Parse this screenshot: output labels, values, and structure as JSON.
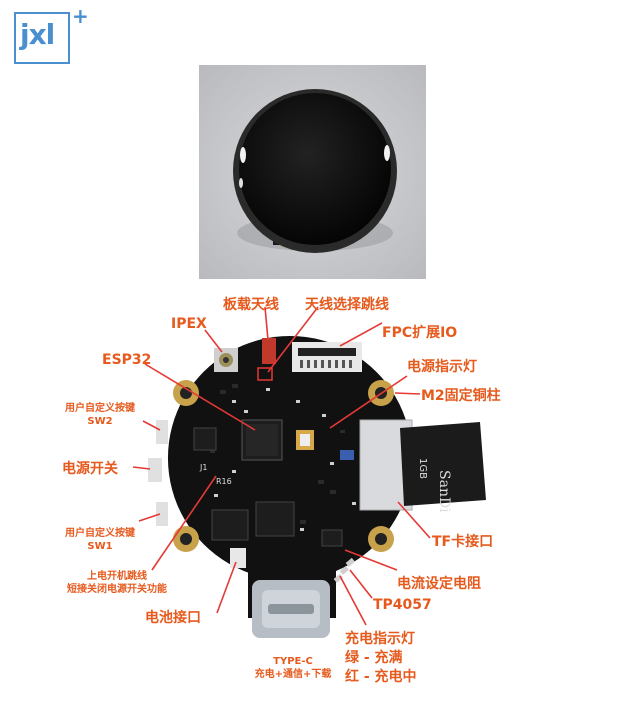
{
  "logo": {
    "text": "jxl",
    "plus": "+"
  },
  "labels": {
    "onboard_antenna": "板载天线",
    "antenna_jumper": "天线选择跳线",
    "ipex": "IPEX",
    "fpc_io": "FPC扩展IO",
    "esp32": "ESP32",
    "power_led": "电源指示灯",
    "m2_pillar": "M2固定铜柱",
    "user_key_sw2": "用户自定义按键",
    "sw2": "SW2",
    "power_switch": "电源开关",
    "user_key_sw1": "用户自定义按键",
    "sw1": "SW1",
    "tf_card": "TF卡接口",
    "jumper_line1": "上电开机跳线",
    "jumper_line2": "短接关闭电源开关功能",
    "current_resistor": "电流设定电阻",
    "battery": "电池接口",
    "tp4057": "TP4057",
    "charge_led": "充电指示灯",
    "green_full": "绿 - 充满",
    "red_charging": "红 - 充电中",
    "type_c": "TYPE-C",
    "type_c_desc": "充电+通信+下载"
  },
  "board": {
    "silk_j1": "J1",
    "silk_r16": "R16",
    "sd_brand": "SanDi",
    "sd_size": "1GB"
  }
}
